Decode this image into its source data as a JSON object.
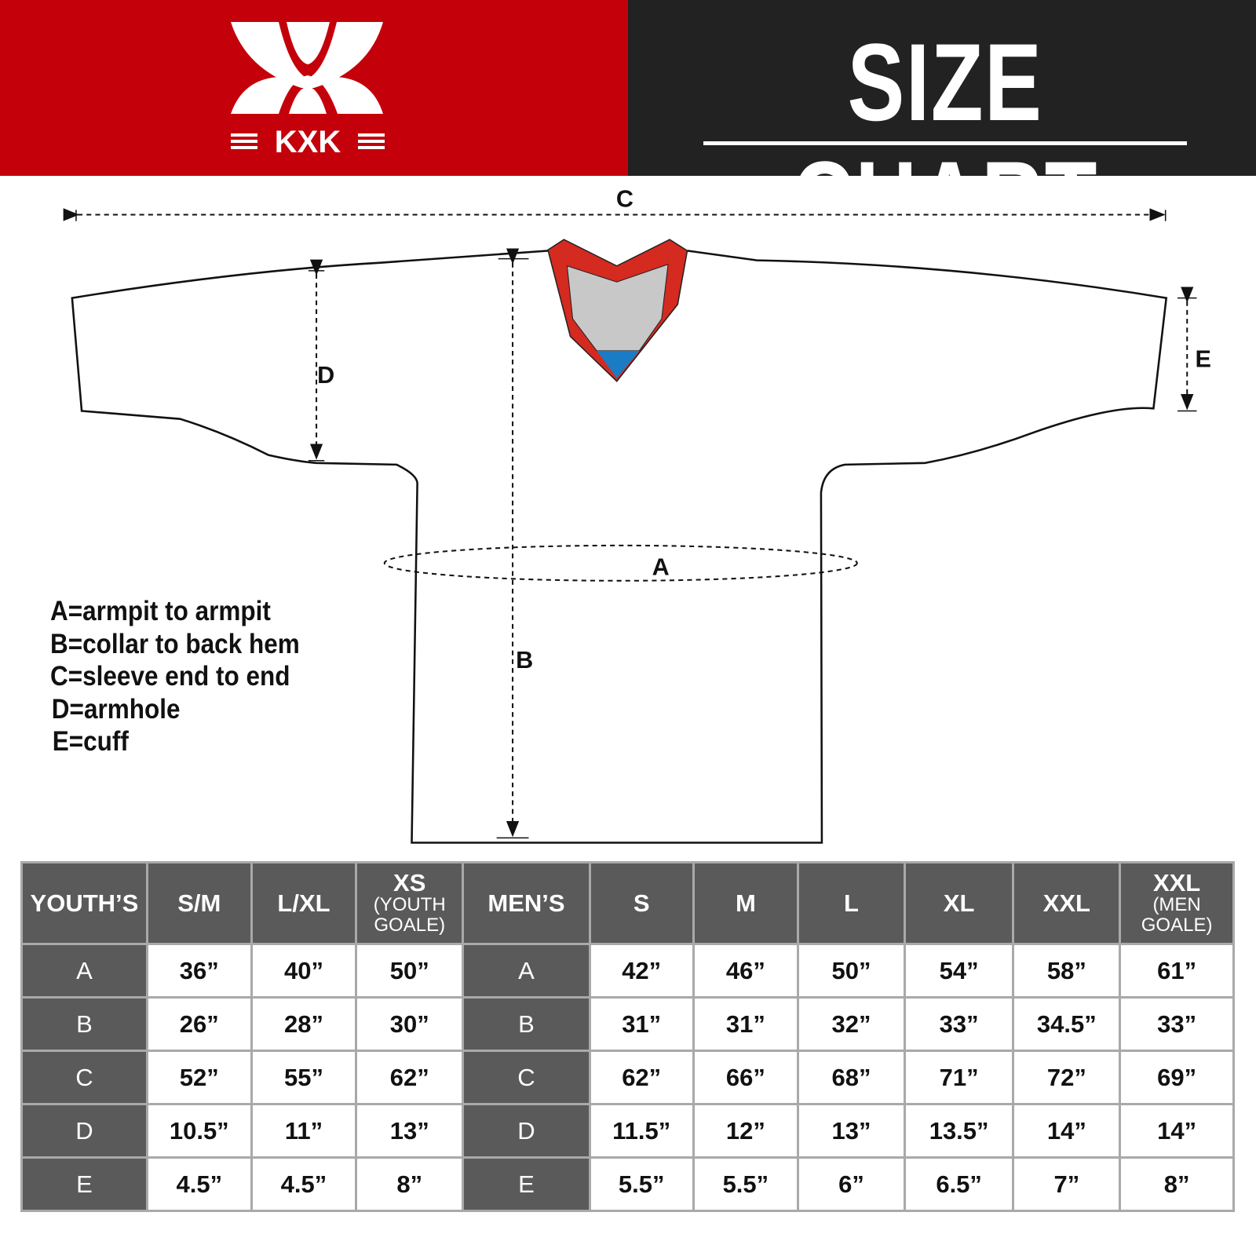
{
  "header": {
    "logo_text": "KXK",
    "title": "SIZE CHART",
    "colors": {
      "left": "#c4000a",
      "right": "#222222"
    }
  },
  "diagram": {
    "labels": {
      "a": "A",
      "b": "B",
      "c": "C",
      "d": "D",
      "e": "E"
    },
    "collar_colors": {
      "trim": "#d42a20",
      "inner": "#c8c8c8",
      "tip": "#1a7cc4"
    }
  },
  "legend": [
    "A=armpit to armpit",
    "B=collar to back hem",
    "C=sleeve end to end",
    "D=armhole",
    "E=cuff"
  ],
  "table": {
    "youth": {
      "header": "YOUTH’S",
      "sizes": [
        {
          "main": "S/M",
          "sub": ""
        },
        {
          "main": "L/XL",
          "sub": ""
        },
        {
          "main": "XS",
          "sub": "(YOUTH GOALE)"
        }
      ]
    },
    "men": {
      "header": "MEN’S",
      "sizes": [
        {
          "main": "S",
          "sub": ""
        },
        {
          "main": "M",
          "sub": ""
        },
        {
          "main": "L",
          "sub": ""
        },
        {
          "main": "XL",
          "sub": ""
        },
        {
          "main": "XXL",
          "sub": ""
        },
        {
          "main": "XXL",
          "sub": "(MEN GOALE)"
        }
      ]
    },
    "rows": [
      {
        "label": "A",
        "youth": [
          "36”",
          "40”",
          "50”"
        ],
        "men": [
          "42”",
          "46”",
          "50”",
          "54”",
          "58”",
          "61”"
        ]
      },
      {
        "label": "B",
        "youth": [
          "26”",
          "28”",
          "30”"
        ],
        "men": [
          "31”",
          "31”",
          "32”",
          "33”",
          "34.5”",
          "33”"
        ]
      },
      {
        "label": "C",
        "youth": [
          "52”",
          "55”",
          "62”"
        ],
        "men": [
          "62”",
          "66”",
          "68”",
          "71”",
          "72”",
          "69”"
        ]
      },
      {
        "label": "D",
        "youth": [
          "10.5”",
          "11”",
          "13”"
        ],
        "men": [
          "11.5”",
          "12”",
          "13”",
          "13.5”",
          "14”",
          "14”"
        ]
      },
      {
        "label": "E",
        "youth": [
          "4.5”",
          "4.5”",
          "8”"
        ],
        "men": [
          "5.5”",
          "5.5”",
          "6”",
          "6.5”",
          "7”",
          "8”"
        ]
      }
    ]
  }
}
